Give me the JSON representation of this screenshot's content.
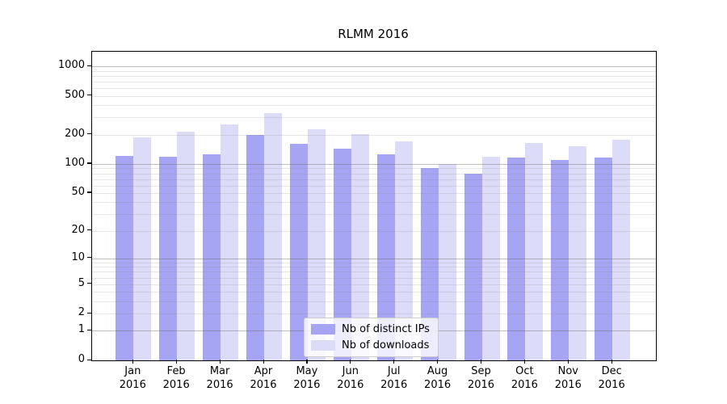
{
  "figure": {
    "title": "RLMM 2016"
  },
  "chart_data": {
    "type": "bar",
    "title": "RLMM 2016",
    "categories": [
      "Jan 2016",
      "Feb 2016",
      "Mar 2016",
      "Apr 2016",
      "May 2016",
      "Jun 2016",
      "Jul 2016",
      "Aug 2016",
      "Sep 2016",
      "Oct 2016",
      "Nov 2016",
      "Dec 2016"
    ],
    "series": [
      {
        "name": "Nb of distinct IPs",
        "color": "#a5a5f3",
        "values": [
          120,
          118,
          125,
          198,
          160,
          145,
          126,
          90,
          79,
          116,
          109,
          116
        ]
      },
      {
        "name": "Nb of downloads",
        "color": "#dcdcf8",
        "values": [
          187,
          215,
          255,
          332,
          228,
          203,
          171,
          100,
          118,
          165,
          152,
          176
        ]
      }
    ],
    "xlabel": "",
    "ylabel": "",
    "yscale": "log1p",
    "ylim": [
      0,
      1412
    ],
    "yticks": [
      0,
      1,
      2,
      5,
      10,
      20,
      50,
      100,
      200,
      500,
      1000
    ],
    "grid_major": [
      1,
      10,
      100,
      1000
    ],
    "grid_minor": [
      2,
      3,
      4,
      5,
      6,
      7,
      8,
      9,
      20,
      30,
      40,
      50,
      60,
      70,
      80,
      90,
      200,
      300,
      400,
      500,
      600,
      700,
      800,
      900
    ],
    "legend": {
      "position": "lower center"
    }
  }
}
